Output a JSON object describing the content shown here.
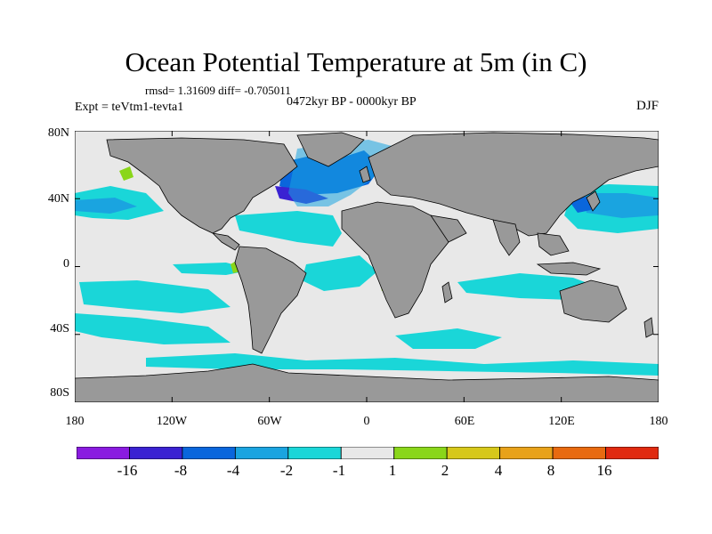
{
  "title": "Ocean Potential Temperature at 5m (in C)",
  "stats_text": "rmsd= 1.31609 diff= -0.705011",
  "experiment_text": "Expt = teVtm1-tevta1",
  "period_text": "0472kyr BP - 0000kyr BP",
  "season": "DJF",
  "lat_ticks": [
    "80N",
    "40N",
    "0",
    "40S",
    "80S"
  ],
  "lon_ticks": [
    "180",
    "120W",
    "60W",
    "0",
    "60E",
    "120E",
    "180"
  ],
  "colorbar": {
    "labels": [
      "-16",
      "-8",
      "-4",
      "-2",
      "-1",
      "1",
      "2",
      "4",
      "8",
      "16"
    ],
    "colors": [
      "#8a1be0",
      "#3a22d2",
      "#0a66dc",
      "#1aa4e0",
      "#1ad6d8",
      "#e8e8e8",
      "#8ad61a",
      "#d6c81a",
      "#e8a21a",
      "#e86a10",
      "#e02a10"
    ]
  },
  "palette": {
    "land": "#999999",
    "neutral": "#e8e8e8",
    "coast": "#000000"
  }
}
